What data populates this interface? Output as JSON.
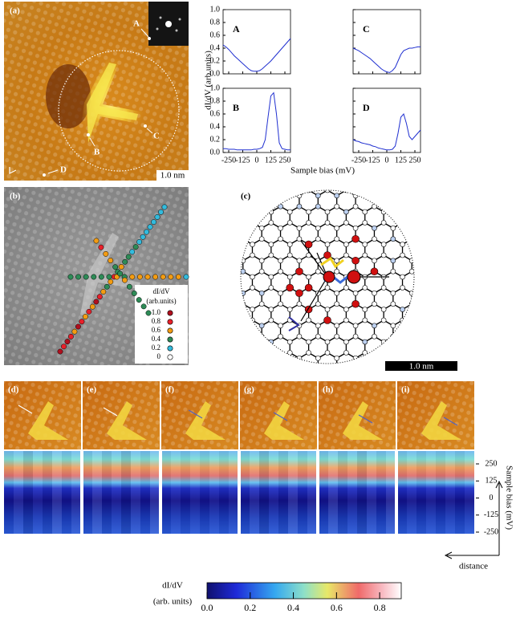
{
  "panel_labels": [
    "(a)",
    "(b)",
    "(c)",
    "(d)",
    "(e)",
    "(f)",
    "(g)",
    "(h)",
    "(i)"
  ],
  "markers": [
    "A",
    "B",
    "C",
    "D"
  ],
  "scale_bars": [
    "1.0 nm",
    "1.0 nm"
  ],
  "shared_axes": {
    "ylabel": "dI/dV (arb.units)",
    "xlabel": "Sample bias (mV)"
  },
  "chart_data": [
    {
      "type": "line",
      "title": "A",
      "color": "#1f2fd0",
      "x": [
        -300,
        -275,
        -250,
        -225,
        -200,
        -175,
        -150,
        -125,
        -100,
        -75,
        -50,
        -25,
        0,
        25,
        50,
        75,
        100,
        125,
        150,
        175,
        200,
        225,
        250,
        275,
        300
      ],
      "values": [
        0.45,
        0.42,
        0.38,
        0.33,
        0.28,
        0.24,
        0.2,
        0.16,
        0.12,
        0.08,
        0.05,
        0.04,
        0.04,
        0.05,
        0.08,
        0.12,
        0.16,
        0.2,
        0.25,
        0.3,
        0.35,
        0.4,
        0.45,
        0.5,
        0.55
      ],
      "xlim": [
        -300,
        300
      ],
      "xticks": [
        -250,
        -125,
        0,
        125,
        250
      ],
      "ylim": [
        0,
        1
      ],
      "yticks": [
        {
          "value": 0,
          "label": "0.0"
        },
        0.2,
        0.4,
        0.6,
        0.8,
        {
          "value": 1,
          "label": "1.0"
        }
      ]
    },
    {
      "type": "line",
      "title": "B",
      "color": "#1f2fd0",
      "x": [
        -300,
        -275,
        -250,
        -225,
        -200,
        -175,
        -150,
        -125,
        -100,
        -75,
        -50,
        -25,
        0,
        25,
        50,
        75,
        100,
        125,
        150,
        175,
        200,
        225,
        250,
        275,
        300
      ],
      "values": [
        0.06,
        0.06,
        0.05,
        0.05,
        0.05,
        0.04,
        0.04,
        0.04,
        0.04,
        0.04,
        0.04,
        0.05,
        0.05,
        0.06,
        0.08,
        0.2,
        0.55,
        0.88,
        0.93,
        0.6,
        0.15,
        0.06,
        0.05,
        0.04,
        0.04
      ],
      "xlim": [
        -300,
        300
      ],
      "xticks": [
        -250,
        -125,
        0,
        125,
        250
      ],
      "ylim": [
        0,
        1
      ],
      "yticks": [
        {
          "value": 0,
          "label": "0.0"
        },
        0.2,
        0.4,
        0.6,
        0.8,
        {
          "value": 1,
          "label": "1.0"
        }
      ]
    },
    {
      "type": "line",
      "title": "C",
      "color": "#1f2fd0",
      "x": [
        -300,
        -275,
        -250,
        -225,
        -200,
        -175,
        -150,
        -125,
        -100,
        -75,
        -50,
        -25,
        0,
        25,
        50,
        75,
        100,
        125,
        150,
        175,
        200,
        225,
        250,
        275,
        300
      ],
      "values": [
        0.4,
        0.38,
        0.36,
        0.33,
        0.3,
        0.27,
        0.24,
        0.2,
        0.16,
        0.12,
        0.08,
        0.05,
        0.03,
        0.02,
        0.05,
        0.1,
        0.2,
        0.3,
        0.36,
        0.38,
        0.4,
        0.4,
        0.41,
        0.42,
        0.42
      ],
      "xlim": [
        -300,
        300
      ],
      "xticks": [
        -250,
        -125,
        0,
        125,
        250
      ],
      "ylim": [
        0,
        1
      ],
      "yticks": [
        {
          "value": 0,
          "label": "0.0"
        },
        0.2,
        0.4,
        0.6,
        0.8,
        {
          "value": 1,
          "label": "1.0"
        }
      ]
    },
    {
      "type": "line",
      "title": "D",
      "color": "#1f2fd0",
      "x": [
        -300,
        -275,
        -250,
        -225,
        -200,
        -175,
        -150,
        -125,
        -100,
        -75,
        -50,
        -25,
        0,
        25,
        50,
        75,
        100,
        125,
        150,
        175,
        200,
        225,
        250,
        275,
        300
      ],
      "values": [
        0.2,
        0.18,
        0.17,
        0.15,
        0.14,
        0.13,
        0.12,
        0.1,
        0.09,
        0.07,
        0.06,
        0.05,
        0.04,
        0.04,
        0.05,
        0.1,
        0.3,
        0.55,
        0.6,
        0.45,
        0.25,
        0.2,
        0.25,
        0.3,
        0.35
      ],
      "xlim": [
        -300,
        300
      ],
      "xticks": [
        -250,
        -125,
        0,
        125,
        250
      ],
      "ylim": [
        0,
        1
      ],
      "yticks": [
        {
          "value": 0,
          "label": "0.0"
        },
        0.2,
        0.4,
        0.6,
        0.8,
        {
          "value": 1,
          "label": "1.0"
        }
      ]
    }
  ],
  "panel_b": {
    "legend_title": [
      "dI/dV",
      "(arb.units)"
    ],
    "legend": [
      {
        "value": 1,
        "label": "1.0",
        "color": "#b0101e"
      },
      {
        "value": 0.8,
        "color": "#e8202a"
      },
      {
        "value": 0.6,
        "color": "#f39c12"
      },
      {
        "value": 0.4,
        "color": "#2e8b57"
      },
      {
        "value": 0.2,
        "color": "#33bbdd"
      },
      {
        "value": 0,
        "color": "#ffffff"
      }
    ],
    "arms": [
      {
        "values": [
          1,
          0.8,
          1,
          0.8,
          0.6,
          1,
          0.8,
          0.6,
          0.8,
          0.6,
          1,
          0.8,
          0.6,
          0.4,
          0.6,
          0.8,
          0.4,
          0.6,
          0.4,
          0.4,
          0.2,
          0.4,
          0.2,
          0.2,
          0.2,
          0.2,
          0.2,
          0.2,
          0.2,
          0.2
        ]
      },
      {
        "values": [
          0.4,
          0.4,
          0.4,
          0.4,
          0.4,
          0.4,
          0.6,
          0.4,
          0.6,
          0.6,
          0.6,
          0.6,
          0.6,
          0.6,
          0.6,
          0.2
        ]
      },
      {
        "values": [
          0.6,
          0.8,
          0.6,
          0.6,
          0.4,
          0.4,
          0.6,
          0.4,
          0.4,
          0.4,
          0.4,
          0.4
        ]
      }
    ]
  },
  "bias_axis": {
    "label": "Sample bias (mV)",
    "ticks": [
      250,
      125,
      0,
      -125,
      -250
    ],
    "lim": [
      300,
      -300
    ],
    "distance_label": "distance"
  },
  "colorbar": {
    "title": [
      "dI/dV",
      "(arb. units)"
    ],
    "lim": [
      0,
      0.9
    ],
    "ticks": [
      {
        "value": 0,
        "label": "0.0"
      },
      0.2,
      0.4,
      0.6,
      0.8
    ]
  }
}
